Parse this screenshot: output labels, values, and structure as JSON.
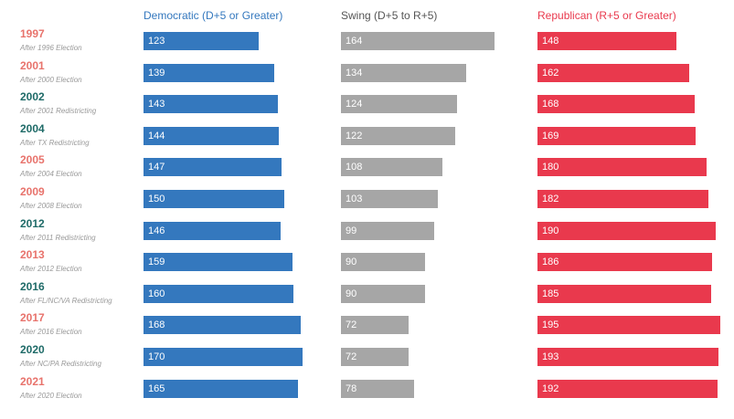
{
  "chart_data": {
    "type": "bar",
    "orientation": "horizontal",
    "categories": [
      {
        "year": "1997",
        "note": "After 1996 Election",
        "color": "#e8736c"
      },
      {
        "year": "2001",
        "note": "After 2000 Election",
        "color": "#e8736c"
      },
      {
        "year": "2002",
        "note": "After 2001 Redistricting",
        "color": "#1f6b68"
      },
      {
        "year": "2004",
        "note": "After TX Redistricting",
        "color": "#1f6b68"
      },
      {
        "year": "2005",
        "note": "After 2004 Election",
        "color": "#e8736c"
      },
      {
        "year": "2009",
        "note": "After 2008 Election",
        "color": "#e8736c"
      },
      {
        "year": "2012",
        "note": "After 2011 Redistricting",
        "color": "#1f6b68"
      },
      {
        "year": "2013",
        "note": "After 2012 Election",
        "color": "#e8736c"
      },
      {
        "year": "2016",
        "note": "After FL/NC/VA Redistricting",
        "color": "#1f6b68"
      },
      {
        "year": "2017",
        "note": "After 2016 Election",
        "color": "#e8736c"
      },
      {
        "year": "2020",
        "note": "After NC/PA Redistricting",
        "color": "#1f6b68"
      },
      {
        "year": "2021",
        "note": "After 2020 Election",
        "color": "#e8736c"
      }
    ],
    "series": [
      {
        "name": "Democratic (D+5 or Greater)",
        "color": "#3478be",
        "values": [
          123,
          139,
          143,
          144,
          147,
          150,
          146,
          159,
          160,
          168,
          170,
          165
        ]
      },
      {
        "name": "Swing (D+5 to R+5)",
        "color": "#a6a6a6",
        "header_color": "#555555",
        "values": [
          164,
          134,
          124,
          122,
          108,
          103,
          99,
          90,
          90,
          72,
          72,
          78
        ]
      },
      {
        "name": "Republican (R+5 or Greater)",
        "color": "#e9394d",
        "values": [
          148,
          162,
          168,
          169,
          180,
          182,
          190,
          186,
          185,
          195,
          193,
          192
        ]
      }
    ],
    "value_max": 195,
    "grid": false,
    "legend": "column headers"
  }
}
